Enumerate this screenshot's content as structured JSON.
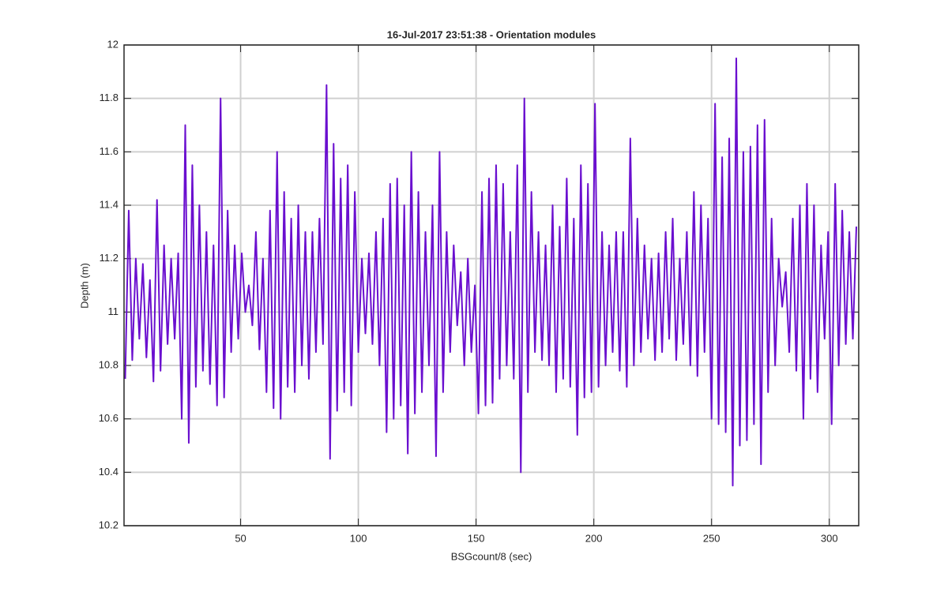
{
  "chart_data": {
    "type": "line",
    "title": "16-Jul-2017 23:51:38 - Orientation modules",
    "x_label": "BSGcount/8 (sec)",
    "y_label": "Depth (m)",
    "color": "#6a0fcf",
    "grid": true,
    "xlim": [
      0.5,
      312.5
    ],
    "ylim": [
      10.2,
      12
    ],
    "xticks": [
      50,
      100,
      150,
      200,
      250,
      300
    ],
    "yticks": [
      10.2,
      10.4,
      10.6,
      10.8,
      11,
      11.2,
      11.4,
      11.6,
      11.8,
      12
    ],
    "x": [
      1,
      2.5,
      4,
      5.5,
      7,
      8.5,
      10,
      11.5,
      13,
      14.5,
      16,
      17.5,
      19,
      20.5,
      22,
      23.5,
      25,
      26.5,
      28,
      29.5,
      31,
      32.5,
      34,
      35.5,
      37,
      38.5,
      40,
      41.5,
      43,
      44.5,
      46,
      47.5,
      49,
      50.5,
      52,
      53.5,
      55,
      56.5,
      58,
      59.5,
      61,
      62.5,
      64,
      65.5,
      67,
      68.5,
      70,
      71.5,
      73,
      74.5,
      76,
      77.5,
      79,
      80.5,
      82,
      83.5,
      85,
      86.5,
      88,
      89.5,
      91,
      92.5,
      94,
      95.5,
      97,
      98.5,
      100,
      101.5,
      103,
      104.5,
      106,
      107.5,
      109,
      110.5,
      112,
      113.5,
      115,
      116.5,
      118,
      119.5,
      121,
      122.5,
      124,
      125.5,
      127,
      128.5,
      130,
      131.5,
      133,
      134.5,
      136,
      137.5,
      139,
      140.5,
      142,
      143.5,
      145,
      146.5,
      148,
      149.5,
      151,
      152.5,
      154,
      155.5,
      157,
      158.5,
      160,
      161.5,
      163,
      164.5,
      166,
      167.5,
      169,
      170.5,
      172,
      173.5,
      175,
      176.5,
      178,
      179.5,
      181,
      182.5,
      184,
      185.5,
      187,
      188.5,
      190,
      191.5,
      193,
      194.5,
      196,
      197.5,
      199,
      200.5,
      202,
      203.5,
      205,
      206.5,
      208,
      209.5,
      211,
      212.5,
      214,
      215.5,
      217,
      218.5,
      220,
      221.5,
      223,
      224.5,
      226,
      227.5,
      229,
      230.5,
      232,
      233.5,
      235,
      236.5,
      238,
      239.5,
      241,
      242.5,
      244,
      245.5,
      247,
      248.5,
      250,
      251.5,
      253,
      254.5,
      256,
      257.5,
      259,
      260.5,
      262,
      263.5,
      265,
      266.5,
      268,
      269.5,
      271,
      272.5,
      274,
      275.5,
      277,
      278.5,
      280,
      281.5,
      283,
      284.5,
      286,
      287.5,
      289,
      290.5,
      292,
      293.5,
      295,
      296.5,
      298,
      299.5,
      301,
      302.5,
      304,
      305.5,
      307,
      308.5,
      310,
      311.5
    ],
    "values": [
      10.75,
      11.38,
      10.82,
      11.2,
      10.9,
      11.18,
      10.83,
      11.12,
      10.74,
      11.42,
      10.78,
      11.25,
      10.88,
      11.2,
      10.9,
      11.22,
      10.6,
      11.7,
      10.51,
      11.55,
      10.72,
      11.4,
      10.78,
      11.3,
      10.73,
      11.25,
      10.65,
      11.8,
      10.68,
      11.38,
      10.85,
      11.25,
      10.9,
      11.22,
      11.0,
      11.1,
      10.95,
      11.3,
      10.86,
      11.2,
      10.7,
      11.38,
      10.64,
      11.6,
      10.6,
      11.45,
      10.72,
      11.35,
      10.7,
      11.4,
      10.8,
      11.3,
      10.75,
      11.3,
      10.85,
      11.35,
      10.88,
      11.85,
      10.45,
      11.63,
      10.63,
      11.5,
      10.7,
      11.55,
      10.65,
      11.45,
      10.85,
      11.2,
      10.92,
      11.22,
      10.88,
      11.3,
      10.8,
      11.35,
      10.55,
      11.48,
      10.6,
      11.5,
      10.65,
      11.4,
      10.47,
      11.6,
      10.62,
      11.45,
      10.7,
      11.3,
      10.8,
      11.4,
      10.46,
      11.6,
      10.7,
      11.3,
      10.85,
      11.25,
      10.95,
      11.15,
      10.8,
      11.2,
      10.85,
      11.1,
      10.62,
      11.45,
      10.65,
      11.5,
      10.66,
      11.55,
      10.75,
      11.48,
      10.8,
      11.3,
      10.75,
      11.55,
      10.4,
      11.8,
      10.7,
      11.45,
      10.85,
      11.3,
      10.82,
      11.25,
      10.8,
      11.4,
      10.7,
      11.32,
      10.75,
      11.5,
      10.72,
      11.35,
      10.54,
      11.55,
      10.68,
      11.48,
      10.7,
      11.78,
      10.72,
      11.3,
      10.8,
      11.25,
      10.85,
      11.3,
      10.78,
      11.3,
      10.72,
      11.65,
      10.8,
      11.35,
      10.85,
      11.25,
      10.9,
      11.2,
      10.82,
      11.22,
      10.85,
      11.3,
      10.9,
      11.35,
      10.82,
      11.2,
      10.88,
      11.3,
      10.8,
      11.45,
      10.76,
      11.4,
      10.85,
      11.35,
      10.6,
      11.78,
      10.58,
      11.58,
      10.55,
      11.65,
      10.35,
      11.95,
      10.5,
      11.6,
      10.52,
      11.62,
      10.58,
      11.7,
      10.43,
      11.72,
      10.7,
      11.35,
      10.8,
      11.2,
      11.02,
      11.15,
      10.85,
      11.35,
      10.78,
      11.4,
      10.6,
      11.48,
      10.75,
      11.4,
      10.7,
      11.25,
      10.9,
      11.3,
      10.58,
      11.48,
      10.8,
      11.38,
      10.88,
      11.3,
      10.9,
      11.32
    ]
  }
}
